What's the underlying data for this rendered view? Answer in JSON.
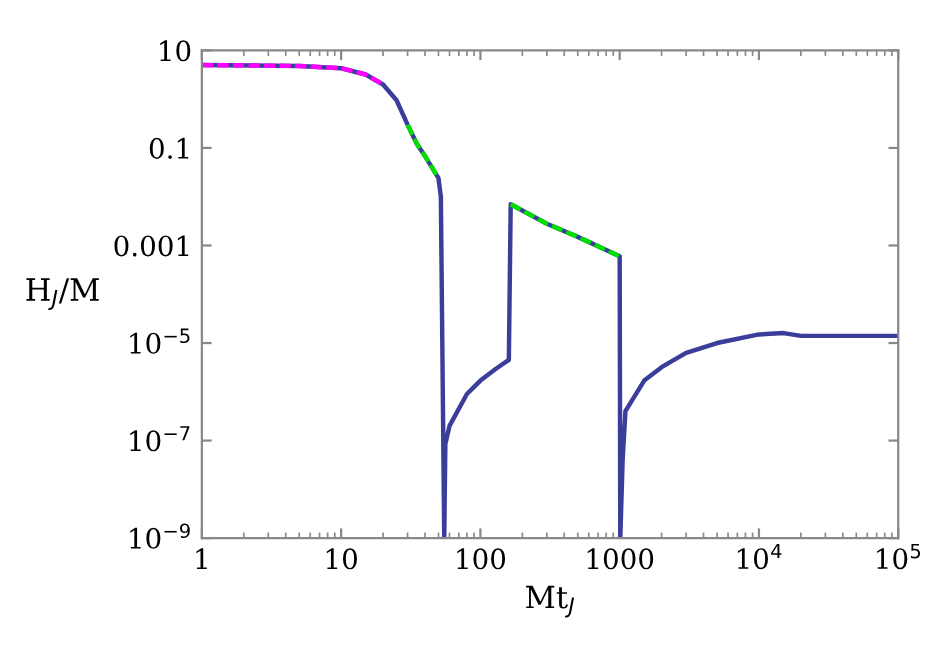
{
  "chart_data": {
    "type": "line",
    "xlabel": "Mt$_{J}$",
    "ylabel": "H$_{J}$/M",
    "log": "xy",
    "legend": false,
    "grid": false,
    "xlim": [
      1,
      100000
    ],
    "ylim": [
      1e-09,
      10
    ],
    "xticks": [
      1,
      10,
      100,
      1000,
      {
        "value": 10000,
        "label": "10$^{4}$"
      },
      {
        "value": 100000,
        "label": "10$^{5}$"
      }
    ],
    "yticks": [
      10,
      0.1,
      0.001,
      {
        "value": 1e-05,
        "label": "10$^{−5}$"
      },
      {
        "value": 1e-07,
        "label": "10$^{−7}$"
      },
      {
        "value": 1e-09,
        "label": "10$^{−9}$"
      }
    ],
    "series": [
      {
        "color": "#3a3d99",
        "line_style": "solid",
        "x": [
          1,
          5,
          10,
          15,
          20,
          25,
          30,
          35,
          40,
          50,
          52,
          55,
          56,
          60,
          80,
          100,
          130,
          160,
          165,
          300,
          500,
          1000,
          1010,
          1050,
          1100,
          1500,
          2000,
          3000,
          5000,
          10000,
          15000,
          20000,
          100000
        ],
        "values": [
          5,
          4.8,
          4.3,
          3.2,
          2,
          0.95,
          0.3,
          0.12,
          0.068,
          0.024,
          0.01,
          1e-09,
          8.5e-08,
          2e-07,
          9e-07,
          1.7e-06,
          3e-06,
          4.5e-06,
          0.007,
          0.0028,
          0.0015,
          0.0006,
          1e-09,
          4e-08,
          4e-07,
          1.7e-06,
          3.2e-06,
          6.3e-06,
          1e-05,
          1.5e-05,
          1.6e-05,
          1.4e-05,
          1.4e-05
        ]
      },
      {
        "color": "#ff00ff",
        "line_style": "dashed",
        "x": [
          1,
          5,
          10,
          15,
          20
        ],
        "values": [
          5,
          4.8,
          4.3,
          3.2,
          2
        ]
      },
      {
        "color": "#00e000",
        "line_style": "dashed",
        "x": [
          30,
          35,
          40,
          50,
          null,
          165,
          300,
          500,
          1000
        ],
        "values": [
          0.3,
          0.12,
          0.068,
          0.024,
          null,
          0.007,
          0.0028,
          0.0015,
          0.0006
        ]
      }
    ]
  }
}
